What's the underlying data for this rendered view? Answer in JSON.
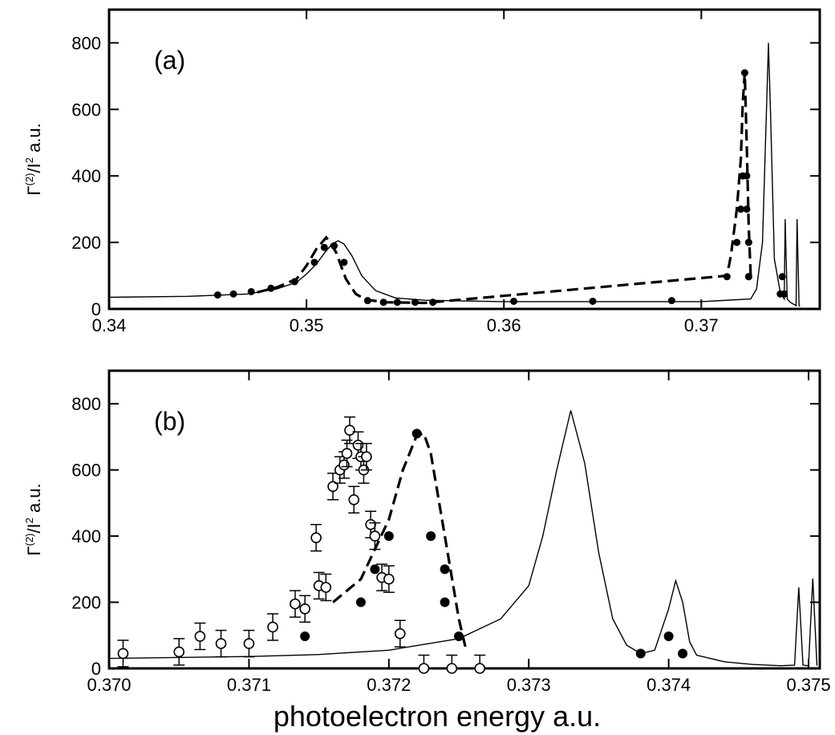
{
  "chart_data": [
    {
      "type": "line",
      "panel_label": "(a)",
      "ylabel": "Γ",
      "ylabel_sup1": "(2)",
      "ylabel_mid": "/I",
      "ylabel_sup2": "2",
      "ylabel_tail": " a.u.",
      "xlabel": "",
      "xlim": [
        0.34,
        0.376
      ],
      "ylim": [
        0,
        900
      ],
      "xticks": [
        0.34,
        0.35,
        0.36,
        0.37
      ],
      "xtick_labels": [
        "0.34",
        "0.35",
        "0.36",
        "0.37"
      ],
      "yticks": [
        0,
        200,
        400,
        600,
        800
      ],
      "ytick_labels": [
        "0",
        "200",
        "400",
        "600",
        "800"
      ],
      "grid": false,
      "series": [
        {
          "style": "solid-thin",
          "x": [
            0.34,
            0.344,
            0.347,
            0.3485,
            0.3495,
            0.35,
            0.3505,
            0.351,
            0.3513,
            0.3516,
            0.3519,
            0.3523,
            0.3528,
            0.3535,
            0.3545,
            0.356,
            0.36,
            0.365,
            0.37,
            0.3725,
            0.3728,
            0.3731,
            0.3733,
            0.3734,
            0.3735,
            0.3737,
            0.374,
            0.3742,
            0.37425,
            0.37435,
            0.3745,
            0.3748,
            0.37485,
            0.37495,
            0.375
          ],
          "y": [
            35,
            38,
            45,
            60,
            80,
            105,
            135,
            175,
            195,
            205,
            195,
            160,
            100,
            55,
            33,
            26,
            22,
            22,
            22,
            30,
            60,
            200,
            600,
            800,
            600,
            150,
            50,
            30,
            270,
            30,
            20,
            10,
            270,
            10,
            8
          ]
        },
        {
          "style": "dashed",
          "x": [
            0.3475,
            0.3485,
            0.3495,
            0.35,
            0.3505,
            0.351,
            0.3512,
            0.3515,
            0.352,
            0.3525,
            0.353,
            0.354,
            0.356,
            0.3713,
            0.3715,
            0.3718,
            0.372,
            0.3721,
            0.3722,
            0.3723,
            0.3724,
            0.3725
          ],
          "y": [
            50,
            65,
            90,
            130,
            180,
            215,
            200,
            170,
            90,
            45,
            28,
            20,
            18,
            100,
            160,
            300,
            450,
            620,
            710,
            500,
            250,
            100
          ]
        }
      ],
      "points": [
        {
          "shape": "filled-circle",
          "x": [
            0.3455,
            0.3463,
            0.3472,
            0.3482,
            0.3494,
            0.3504,
            0.3509,
            0.3514,
            0.3519,
            0.3531,
            0.3539,
            0.3546,
            0.3555,
            0.3564,
            0.3605,
            0.3645,
            0.3685,
            0.3713,
            0.3718,
            0.372,
            0.3721,
            0.3722,
            0.3723,
            0.3723,
            0.3724,
            0.3724,
            0.3724,
            0.374,
            0.3741,
            0.3742
          ],
          "y": [
            42,
            45,
            52,
            62,
            82,
            140,
            185,
            190,
            140,
            25,
            20,
            20,
            20,
            20,
            23,
            23,
            25,
            97,
            200,
            300,
            400,
            710,
            300,
            400,
            200,
            97,
            97,
            45,
            97,
            45
          ]
        }
      ]
    },
    {
      "type": "line",
      "panel_label": "(b)",
      "ylabel": "Γ",
      "ylabel_sup1": "(2)",
      "ylabel_mid": "/I",
      "ylabel_sup2": "2",
      "ylabel_tail": " a.u.",
      "xlabel": "photoelectron energy a.u.",
      "xlim": [
        0.37,
        0.37508
      ],
      "ylim": [
        0,
        900
      ],
      "xticks": [
        0.37,
        0.371,
        0.372,
        0.373,
        0.374,
        0.375
      ],
      "xtick_labels": [
        "0.370",
        "0.371",
        "0.372",
        "0.373",
        "0.374",
        "0.375"
      ],
      "yticks": [
        0,
        200,
        400,
        600,
        800
      ],
      "ytick_labels": [
        "0",
        "200",
        "400",
        "600",
        "800"
      ],
      "grid": false,
      "series": [
        {
          "style": "solid-thin",
          "x": [
            0.37,
            0.371,
            0.3715,
            0.372,
            0.3725,
            0.3728,
            0.373,
            0.3731,
            0.3732,
            0.3733,
            0.3734,
            0.3735,
            0.3736,
            0.3737,
            0.3738,
            0.3739,
            0.374,
            0.37405,
            0.3741,
            0.37415,
            0.3742,
            0.3744,
            0.3746,
            0.3748,
            0.3749,
            0.37493,
            0.37496,
            0.375,
            0.37503,
            0.37506
          ],
          "y": [
            30,
            36,
            42,
            55,
            90,
            150,
            250,
            400,
            600,
            780,
            620,
            350,
            150,
            70,
            45,
            55,
            180,
            265,
            200,
            80,
            40,
            20,
            12,
            8,
            10,
            245,
            10,
            8,
            272,
            8
          ]
        },
        {
          "style": "dashed",
          "x": [
            0.3716,
            0.3718,
            0.372,
            0.3721,
            0.3722,
            0.37225,
            0.3723,
            0.3724,
            0.3725,
            0.37255
          ],
          "y": [
            200,
            270,
            450,
            600,
            705,
            710,
            650,
            400,
            150,
            60
          ]
        }
      ],
      "points": [
        {
          "shape": "filled-circle",
          "x": [
            0.3714,
            0.3718,
            0.3719,
            0.372,
            0.3722,
            0.3723,
            0.3724,
            0.3724,
            0.3725,
            0.3738,
            0.374,
            0.3741
          ],
          "y": [
            97,
            200,
            300,
            400,
            710,
            400,
            300,
            200,
            97,
            45,
            97,
            45
          ]
        },
        {
          "shape": "open-circle-errorbar",
          "x": [
            0.3701,
            0.3705,
            0.37065,
            0.3708,
            0.371,
            0.37117,
            0.37133,
            0.3714,
            0.37148,
            0.3715,
            0.37155,
            0.3716,
            0.37165,
            0.37168,
            0.3717,
            0.37172,
            0.37175,
            0.37178,
            0.3718,
            0.37182,
            0.37184,
            0.37187,
            0.3719,
            0.37195,
            0.372,
            0.37208,
            0.37225,
            0.37245,
            0.37265
          ],
          "y": [
            45,
            50,
            97,
            75,
            75,
            125,
            195,
            180,
            395,
            250,
            245,
            550,
            600,
            615,
            650,
            720,
            510,
            675,
            640,
            600,
            640,
            435,
            400,
            275,
            270,
            105,
            0,
            0,
            0
          ],
          "err": [
            40,
            40,
            40,
            40,
            40,
            40,
            40,
            40,
            40,
            40,
            40,
            40,
            40,
            40,
            40,
            40,
            40,
            40,
            40,
            40,
            40,
            40,
            40,
            40,
            40,
            40,
            40,
            40,
            40
          ]
        }
      ]
    }
  ]
}
